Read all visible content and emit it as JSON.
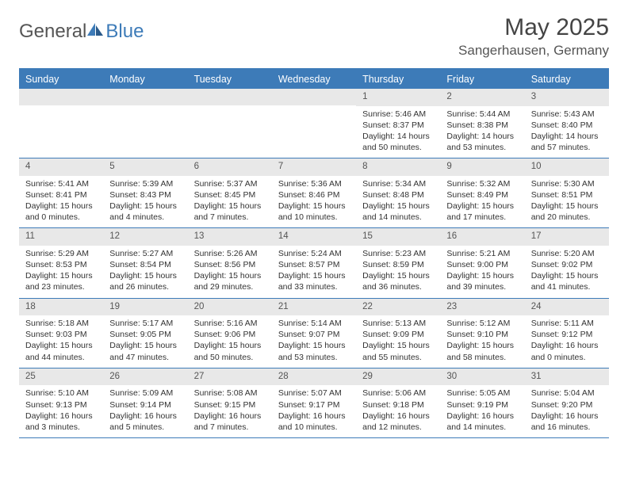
{
  "brand": {
    "name1": "General",
    "name2": "Blue"
  },
  "title": "May 2025",
  "location": "Sangerhausen, Germany",
  "colors": {
    "accent": "#3d7bb8",
    "header_bg": "#3d7bb8",
    "daynum_bg": "#e8e8e8",
    "text": "#333333",
    "bg": "#ffffff"
  },
  "weekdays": [
    "Sunday",
    "Monday",
    "Tuesday",
    "Wednesday",
    "Thursday",
    "Friday",
    "Saturday"
  ],
  "weeks": [
    [
      null,
      null,
      null,
      null,
      {
        "n": "1",
        "sr": "5:46 AM",
        "ss": "8:37 PM",
        "dl": "14 hours and 50 minutes."
      },
      {
        "n": "2",
        "sr": "5:44 AM",
        "ss": "8:38 PM",
        "dl": "14 hours and 53 minutes."
      },
      {
        "n": "3",
        "sr": "5:43 AM",
        "ss": "8:40 PM",
        "dl": "14 hours and 57 minutes."
      }
    ],
    [
      {
        "n": "4",
        "sr": "5:41 AM",
        "ss": "8:41 PM",
        "dl": "15 hours and 0 minutes."
      },
      {
        "n": "5",
        "sr": "5:39 AM",
        "ss": "8:43 PM",
        "dl": "15 hours and 4 minutes."
      },
      {
        "n": "6",
        "sr": "5:37 AM",
        "ss": "8:45 PM",
        "dl": "15 hours and 7 minutes."
      },
      {
        "n": "7",
        "sr": "5:36 AM",
        "ss": "8:46 PM",
        "dl": "15 hours and 10 minutes."
      },
      {
        "n": "8",
        "sr": "5:34 AM",
        "ss": "8:48 PM",
        "dl": "15 hours and 14 minutes."
      },
      {
        "n": "9",
        "sr": "5:32 AM",
        "ss": "8:49 PM",
        "dl": "15 hours and 17 minutes."
      },
      {
        "n": "10",
        "sr": "5:30 AM",
        "ss": "8:51 PM",
        "dl": "15 hours and 20 minutes."
      }
    ],
    [
      {
        "n": "11",
        "sr": "5:29 AM",
        "ss": "8:53 PM",
        "dl": "15 hours and 23 minutes."
      },
      {
        "n": "12",
        "sr": "5:27 AM",
        "ss": "8:54 PM",
        "dl": "15 hours and 26 minutes."
      },
      {
        "n": "13",
        "sr": "5:26 AM",
        "ss": "8:56 PM",
        "dl": "15 hours and 29 minutes."
      },
      {
        "n": "14",
        "sr": "5:24 AM",
        "ss": "8:57 PM",
        "dl": "15 hours and 33 minutes."
      },
      {
        "n": "15",
        "sr": "5:23 AM",
        "ss": "8:59 PM",
        "dl": "15 hours and 36 minutes."
      },
      {
        "n": "16",
        "sr": "5:21 AM",
        "ss": "9:00 PM",
        "dl": "15 hours and 39 minutes."
      },
      {
        "n": "17",
        "sr": "5:20 AM",
        "ss": "9:02 PM",
        "dl": "15 hours and 41 minutes."
      }
    ],
    [
      {
        "n": "18",
        "sr": "5:18 AM",
        "ss": "9:03 PM",
        "dl": "15 hours and 44 minutes."
      },
      {
        "n": "19",
        "sr": "5:17 AM",
        "ss": "9:05 PM",
        "dl": "15 hours and 47 minutes."
      },
      {
        "n": "20",
        "sr": "5:16 AM",
        "ss": "9:06 PM",
        "dl": "15 hours and 50 minutes."
      },
      {
        "n": "21",
        "sr": "5:14 AM",
        "ss": "9:07 PM",
        "dl": "15 hours and 53 minutes."
      },
      {
        "n": "22",
        "sr": "5:13 AM",
        "ss": "9:09 PM",
        "dl": "15 hours and 55 minutes."
      },
      {
        "n": "23",
        "sr": "5:12 AM",
        "ss": "9:10 PM",
        "dl": "15 hours and 58 minutes."
      },
      {
        "n": "24",
        "sr": "5:11 AM",
        "ss": "9:12 PM",
        "dl": "16 hours and 0 minutes."
      }
    ],
    [
      {
        "n": "25",
        "sr": "5:10 AM",
        "ss": "9:13 PM",
        "dl": "16 hours and 3 minutes."
      },
      {
        "n": "26",
        "sr": "5:09 AM",
        "ss": "9:14 PM",
        "dl": "16 hours and 5 minutes."
      },
      {
        "n": "27",
        "sr": "5:08 AM",
        "ss": "9:15 PM",
        "dl": "16 hours and 7 minutes."
      },
      {
        "n": "28",
        "sr": "5:07 AM",
        "ss": "9:17 PM",
        "dl": "16 hours and 10 minutes."
      },
      {
        "n": "29",
        "sr": "5:06 AM",
        "ss": "9:18 PM",
        "dl": "16 hours and 12 minutes."
      },
      {
        "n": "30",
        "sr": "5:05 AM",
        "ss": "9:19 PM",
        "dl": "16 hours and 14 minutes."
      },
      {
        "n": "31",
        "sr": "5:04 AM",
        "ss": "9:20 PM",
        "dl": "16 hours and 16 minutes."
      }
    ]
  ],
  "labels": {
    "sunrise": "Sunrise:",
    "sunset": "Sunset:",
    "daylight": "Daylight:"
  }
}
